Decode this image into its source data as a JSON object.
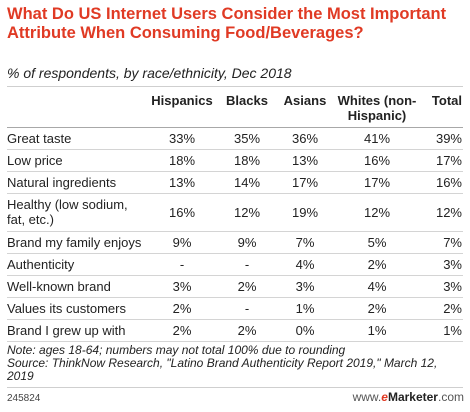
{
  "header": {
    "title": "What Do US Internet Users Consider the Most Important Attribute When Consuming Food/Beverages?",
    "subtitle": "% of respondents, by race/ethnicity, Dec 2018"
  },
  "chart_data": {
    "type": "table",
    "columns": [
      "",
      "Hispanics",
      "Blacks",
      "Asians",
      "Whites (non-Hispanic)",
      "Total"
    ],
    "rows": [
      {
        "label": "Great taste",
        "values": [
          "33%",
          "35%",
          "36%",
          "41%",
          "39%"
        ]
      },
      {
        "label": "Low price",
        "values": [
          "18%",
          "18%",
          "13%",
          "16%",
          "17%"
        ]
      },
      {
        "label": "Natural ingredients",
        "values": [
          "13%",
          "14%",
          "17%",
          "17%",
          "16%"
        ]
      },
      {
        "label": "Healthy (low sodium, fat, etc.)",
        "values": [
          "16%",
          "12%",
          "19%",
          "12%",
          "12%"
        ]
      },
      {
        "label": "Brand my family enjoys",
        "values": [
          "9%",
          "9%",
          "7%",
          "5%",
          "7%"
        ]
      },
      {
        "label": "Authenticity",
        "values": [
          "-",
          "-",
          "4%",
          "2%",
          "3%"
        ]
      },
      {
        "label": "Well-known brand",
        "values": [
          "3%",
          "2%",
          "3%",
          "4%",
          "3%"
        ]
      },
      {
        "label": "Values its customers",
        "values": [
          "2%",
          "-",
          "1%",
          "2%",
          "2%"
        ]
      },
      {
        "label": "Brand I grew up with",
        "values": [
          "2%",
          "2%",
          "0%",
          "1%",
          "1%"
        ]
      }
    ]
  },
  "footer": {
    "note": "Note: ages 18-64; numbers may not total 100% due to rounding",
    "source": "Source: ThinkNow Research, \"Latino Brand Authenticity Report 2019,\" March 12, 2019",
    "chart_id": "245824",
    "site_prefix": "www.",
    "site_brand_e": "e",
    "site_brand_rest": "Marketer",
    "site_suffix": ".com"
  }
}
